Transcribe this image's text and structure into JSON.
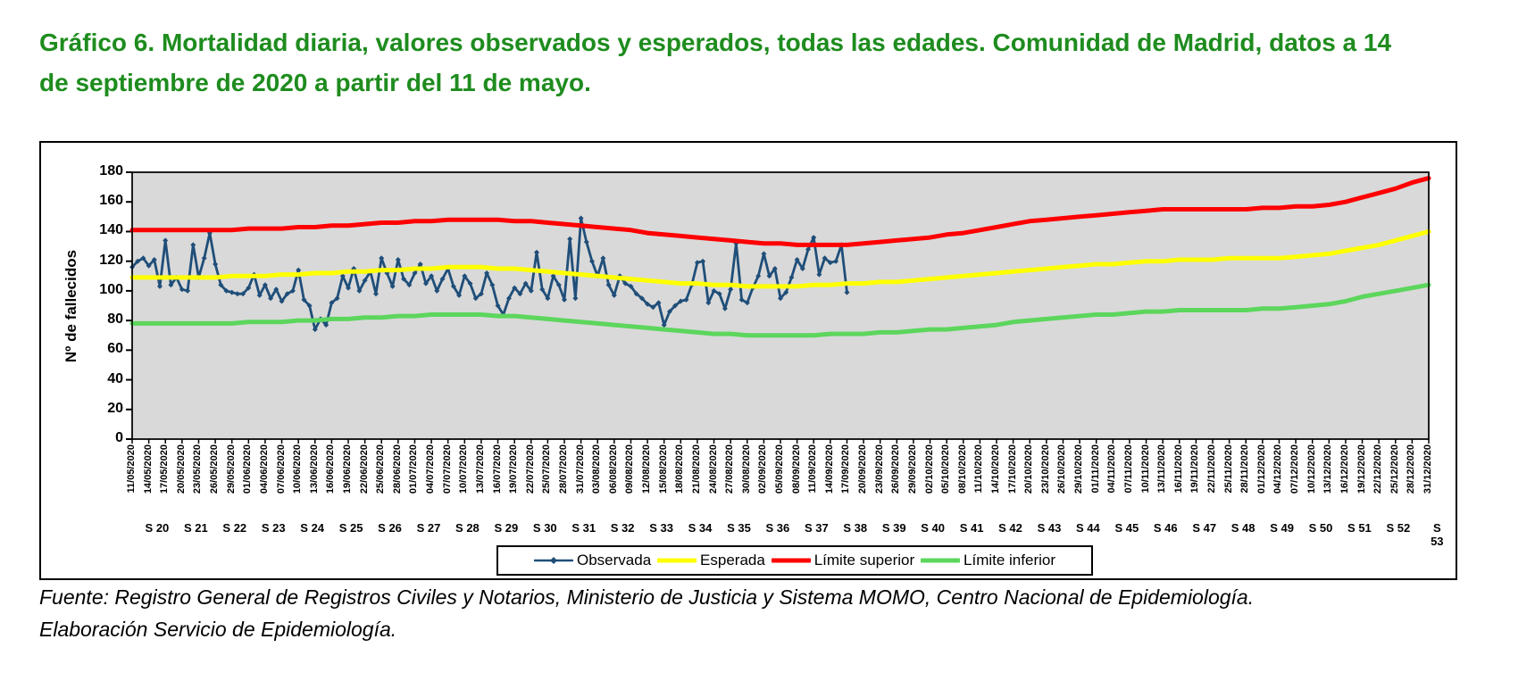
{
  "title": "Gráfico 6. Mortalidad diaria, valores observados y esperados, todas las edades. Comunidad de Madrid, datos a 14 de septiembre de 2020 a partir del 11 de mayo.",
  "footer": {
    "line1": "Fuente: Registro General de Registros Civiles y Notarios, Ministerio de Justicia y Sistema MOMO, Centro Nacional de Epidemiología.",
    "line2": "Elaboración Servicio de Epidemiología."
  },
  "colors": {
    "title_green": "#1e8c1e",
    "observed_navy": "#1F4E79",
    "expected_yellow": "#FFFF00",
    "upper_limit_red": "#FF0000",
    "lower_limit_green": "#5cd65c",
    "plot_background": "#D9D9D9",
    "border_black": "#000000"
  },
  "chart_data": {
    "type": "line",
    "title": "Gráfico 6. Mortalidad diaria, valores observados y esperados, todas las edades. Comunidad de Madrid, datos a 14 de septiembre de 2020 a partir del 11 de mayo.",
    "xlabel": "",
    "ylabel": "Nº de fallecidos",
    "ylim": [
      0,
      180
    ],
    "yticks": [
      0,
      20,
      40,
      60,
      80,
      100,
      120,
      140,
      160,
      180
    ],
    "grid": false,
    "plot_background": "#D9D9D9",
    "legend_position": "bottom",
    "x_range_days": 234,
    "x_tick_dates": [
      "11/05/2020",
      "14/05/2020",
      "17/05/2020",
      "20/05/2020",
      "23/05/2020",
      "26/05/2020",
      "29/05/2020",
      "01/06/2020",
      "04/06/2020",
      "07/06/2020",
      "10/06/2020",
      "13/06/2020",
      "16/06/2020",
      "19/06/2020",
      "22/06/2020",
      "25/06/2020",
      "28/06/2020",
      "01/07/2020",
      "04/07/2020",
      "07/07/2020",
      "10/07/2020",
      "13/07/2020",
      "16/07/2020",
      "19/07/2020",
      "22/07/2020",
      "25/07/2020",
      "28/07/2020",
      "31/07/2020",
      "03/08/2020",
      "06/08/2020",
      "09/08/2020",
      "12/08/2020",
      "15/08/2020",
      "18/08/2020",
      "21/08/2020",
      "24/08/2020",
      "27/08/2020",
      "30/08/2020",
      "02/09/2020",
      "05/09/2020",
      "08/09/2020",
      "11/09/2020",
      "14/09/2020",
      "17/09/2020",
      "20/09/2020",
      "23/09/2020",
      "26/09/2020",
      "29/09/2020",
      "02/10/2020",
      "05/10/2020",
      "08/10/2020",
      "11/10/2020",
      "14/10/2020",
      "17/10/2020",
      "20/10/2020",
      "23/10/2020",
      "26/10/2020",
      "29/10/2020",
      "01/11/2020",
      "04/11/2020",
      "07/11/2020",
      "10/11/2020",
      "13/11/2020",
      "16/11/2020",
      "19/11/2020",
      "22/11/2020",
      "25/11/2020",
      "28/11/2020",
      "01/12/2020",
      "04/12/2020",
      "07/12/2020",
      "10/12/2020",
      "13/12/2020",
      "16/12/2020",
      "19/12/2020",
      "22/12/2020",
      "25/12/2020",
      "28/12/2020",
      "31/12/2020"
    ],
    "week_labels": [
      "S 20",
      "S 21",
      "S 22",
      "S 23",
      "S 24",
      "S 25",
      "S 26",
      "S 27",
      "S 28",
      "S 29",
      "S 30",
      "S 31",
      "S 32",
      "S 33",
      "S 34",
      "S 35",
      "S 36",
      "S 37",
      "S 38",
      "S 39",
      "S 40",
      "S 41",
      "S 42",
      "S 43",
      "S 44",
      "S 45",
      "S 46",
      "S 47",
      "S 48",
      "S 49",
      "S 50",
      "S 51",
      "S 52",
      "S\n53"
    ],
    "series": [
      {
        "name": "Observada",
        "color": "#1F4E79",
        "marker": true,
        "line_width": 2.8,
        "start_date": "11/05/2020",
        "end_date": "17/09/2020",
        "step_days": 1,
        "values": [
          116,
          120,
          122,
          117,
          121,
          103,
          134,
          104,
          109,
          101,
          100,
          131,
          109,
          122,
          139,
          118,
          104,
          100,
          99,
          98,
          98,
          102,
          111,
          97,
          104,
          95,
          101,
          93,
          98,
          100,
          114,
          94,
          90,
          74,
          81,
          77,
          92,
          95,
          110,
          102,
          115,
          100,
          107,
          113,
          98,
          122,
          112,
          103,
          121,
          108,
          104,
          112,
          118,
          105,
          110,
          100,
          108,
          115,
          103,
          97,
          110,
          105,
          95,
          98,
          112,
          104,
          90,
          84,
          95,
          102,
          98,
          105,
          100,
          126,
          101,
          95,
          110,
          104,
          94,
          135,
          95,
          149,
          133,
          120,
          110,
          122,
          104,
          97,
          110,
          105,
          103,
          98,
          95,
          91,
          89,
          92,
          77,
          86,
          90,
          93,
          94,
          104,
          119,
          120,
          92,
          100,
          98,
          88,
          101,
          132,
          94,
          92,
          102,
          110,
          125,
          110,
          115,
          95,
          99,
          109,
          121,
          115,
          128,
          136,
          111,
          122,
          119,
          120,
          131,
          99
        ]
      },
      {
        "name": "Esperada",
        "color": "#FFFF00",
        "marker": false,
        "line_width": 5,
        "start_date": "11/05/2020",
        "end_date": "31/12/2020",
        "step_days": 3,
        "values": [
          109,
          109,
          109,
          109,
          109,
          109,
          110,
          110,
          110,
          111,
          111,
          112,
          112,
          113,
          113,
          114,
          114,
          115,
          115,
          116,
          116,
          116,
          115,
          115,
          114,
          113,
          112,
          111,
          110,
          109,
          108,
          107,
          106,
          105,
          105,
          104,
          104,
          103,
          103,
          103,
          103,
          104,
          104,
          105,
          105,
          106,
          106,
          107,
          108,
          109,
          110,
          111,
          112,
          113,
          114,
          115,
          116,
          117,
          118,
          118,
          119,
          120,
          120,
          121,
          121,
          121,
          122,
          122,
          122,
          122,
          123,
          124,
          125,
          127,
          129,
          131,
          134,
          137,
          140
        ]
      },
      {
        "name": "Límite superior",
        "color": "#FF0000",
        "marker": false,
        "line_width": 5,
        "start_date": "11/05/2020",
        "end_date": "31/12/2020",
        "step_days": 3,
        "values": [
          141,
          141,
          141,
          141,
          141,
          141,
          141,
          142,
          142,
          142,
          143,
          143,
          144,
          144,
          145,
          146,
          146,
          147,
          147,
          148,
          148,
          148,
          148,
          147,
          147,
          146,
          145,
          144,
          143,
          142,
          141,
          139,
          138,
          137,
          136,
          135,
          134,
          133,
          132,
          132,
          131,
          131,
          131,
          131,
          132,
          133,
          134,
          135,
          136,
          138,
          139,
          141,
          143,
          145,
          147,
          148,
          149,
          150,
          151,
          152,
          153,
          154,
          155,
          155,
          155,
          155,
          155,
          155,
          156,
          156,
          157,
          157,
          158,
          160,
          163,
          166,
          169,
          173,
          176
        ]
      },
      {
        "name": "Límite inferior",
        "color": "#5cd65c",
        "marker": false,
        "line_width": 5,
        "start_date": "11/05/2020",
        "end_date": "31/12/2020",
        "step_days": 3,
        "values": [
          78,
          78,
          78,
          78,
          78,
          78,
          78,
          79,
          79,
          79,
          80,
          80,
          81,
          81,
          82,
          82,
          83,
          83,
          84,
          84,
          84,
          84,
          83,
          83,
          82,
          81,
          80,
          79,
          78,
          77,
          76,
          75,
          74,
          73,
          72,
          71,
          71,
          70,
          70,
          70,
          70,
          70,
          71,
          71,
          71,
          72,
          72,
          73,
          74,
          74,
          75,
          76,
          77,
          79,
          80,
          81,
          82,
          83,
          84,
          84,
          85,
          86,
          86,
          87,
          87,
          87,
          87,
          87,
          88,
          88,
          89,
          90,
          91,
          93,
          96,
          98,
          100,
          102,
          104
        ]
      }
    ],
    "legend": [
      "Observada",
      "Esperada",
      "Límite superior",
      "Límite inferior"
    ]
  }
}
